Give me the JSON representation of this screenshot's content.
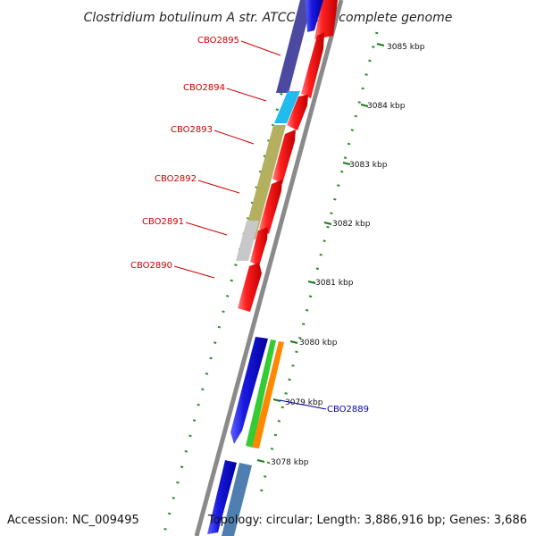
{
  "title": "Clostridium botulinum A str. ATCC 3502, complete genome",
  "footer": {
    "accession": "Accession: NC_009495",
    "topology": "Topology: circular; Length: 3,886,916 bp; Genes: 3,686"
  },
  "ticks": [
    "3085 kbp",
    "3084 kbp",
    "3083 kbp",
    "3082 kbp",
    "3081 kbp",
    "3080 kbp",
    "3079 kbp",
    "3078 kbp"
  ],
  "gene_labels": [
    "CBO2895",
    "CBO2894",
    "CBO2893",
    "CBO2892",
    "CBO2891",
    "CBO2890",
    "CBO2889"
  ],
  "colors": {
    "cds_red": "#ee1111",
    "cds_blue": "#1111dd",
    "cog_navy": "#4b4aa0",
    "cog_cyan": "#22bbee",
    "cog_olive": "#b5b060",
    "cog_gray": "#c8c8c8",
    "cog_green": "#33cc33",
    "cog_orange": "#ff8800",
    "cog_steel": "#4f7fb0",
    "backbone": "#777777",
    "tick_green": "#1d7a1d",
    "label_red": "#cc0000",
    "label_blue": "#0000aa"
  }
}
